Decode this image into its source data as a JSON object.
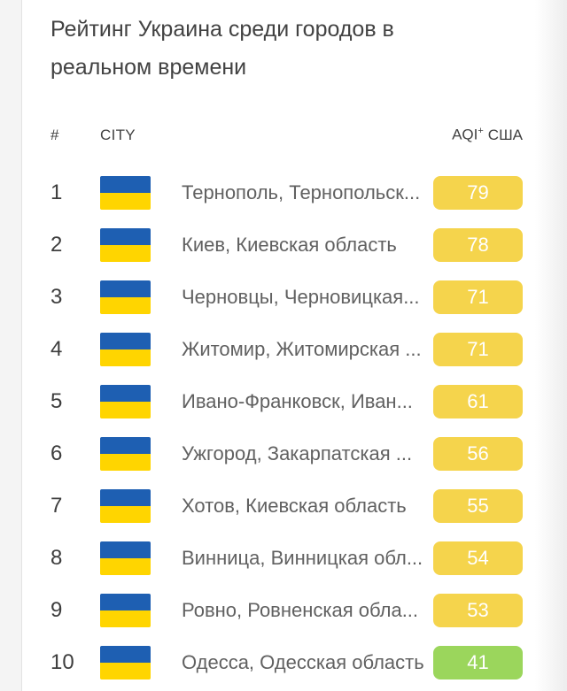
{
  "title": "Рейтинг Украина среди городов в реальном времени",
  "table": {
    "header": {
      "rank": "#",
      "city": "CITY",
      "aqi_label": "AQI",
      "aqi_sup": "+",
      "aqi_region": "США"
    },
    "rows": [
      {
        "rank": "1",
        "flag": "ukraine-flag",
        "city": "Тернополь, Тернопольск...",
        "aqi": "79",
        "level": "moderate"
      },
      {
        "rank": "2",
        "flag": "ukraine-flag",
        "city": "Киев, Киевская область",
        "aqi": "78",
        "level": "moderate"
      },
      {
        "rank": "3",
        "flag": "ukraine-flag",
        "city": "Черновцы, Черновицкая...",
        "aqi": "71",
        "level": "moderate"
      },
      {
        "rank": "4",
        "flag": "ukraine-flag",
        "city": "Житомир, Житомирская ...",
        "aqi": "71",
        "level": "moderate"
      },
      {
        "rank": "5",
        "flag": "ukraine-flag",
        "city": "Ивано-Франковск, Иван...",
        "aqi": "61",
        "level": "moderate"
      },
      {
        "rank": "6",
        "flag": "ukraine-flag",
        "city": "Ужгород, Закарпатская ...",
        "aqi": "56",
        "level": "moderate"
      },
      {
        "rank": "7",
        "flag": "ukraine-flag",
        "city": "Хотов, Киевская область",
        "aqi": "55",
        "level": "moderate"
      },
      {
        "rank": "8",
        "flag": "ukraine-flag",
        "city": "Винница, Винницкая обл...",
        "aqi": "54",
        "level": "moderate"
      },
      {
        "rank": "9",
        "flag": "ukraine-flag",
        "city": "Ровно, Ровненская обла...",
        "aqi": "53",
        "level": "moderate"
      },
      {
        "rank": "10",
        "flag": "ukraine-flag",
        "city": "Одесса, Одесская область",
        "aqi": "41",
        "level": "good"
      }
    ]
  },
  "colors": {
    "moderate": "#f5d44c",
    "good": "#9bd65c",
    "flag_blue": "#1e5fb2",
    "flag_yellow": "#ffd500",
    "title_text": "#424242",
    "city_text": "#616161",
    "badge_text": "#ffffff"
  }
}
